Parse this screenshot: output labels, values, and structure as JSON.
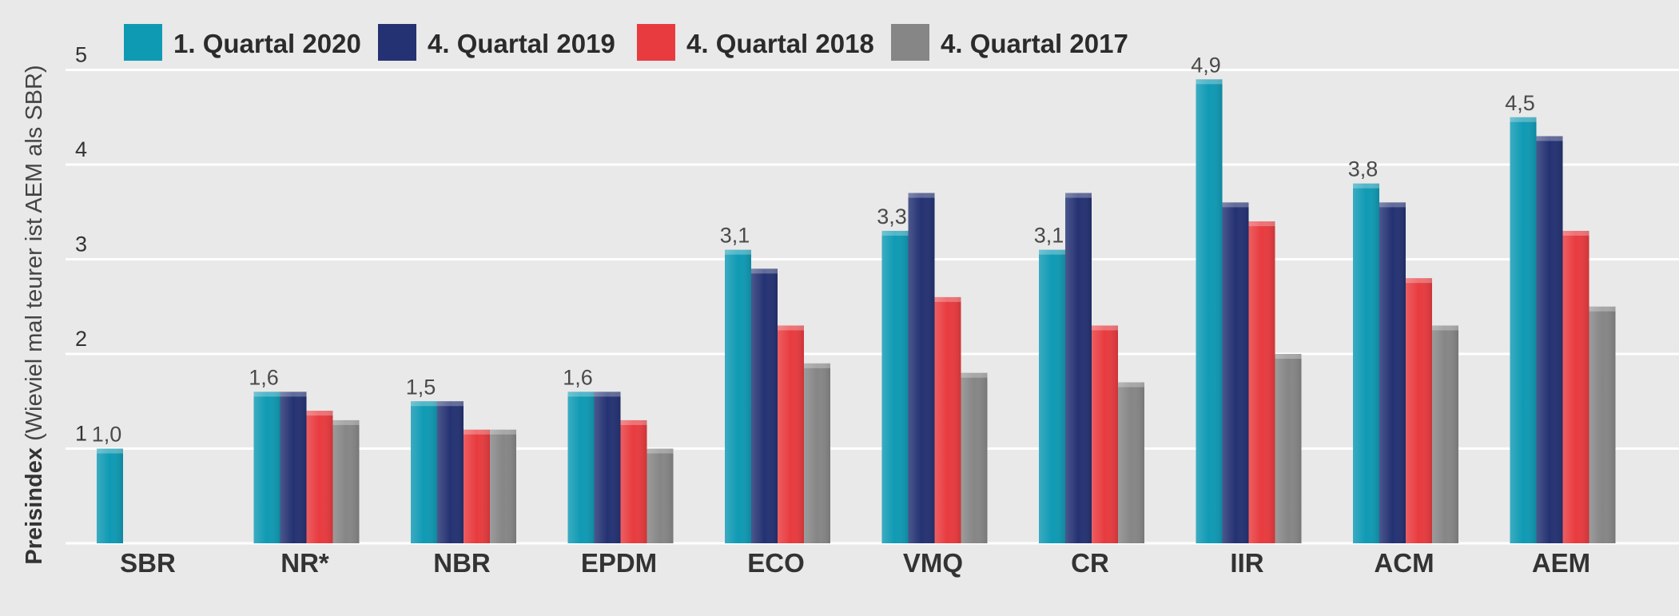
{
  "chart_data": {
    "type": "bar",
    "title": "",
    "xlabel": "",
    "ylabel_bold": "Preisindex",
    "ylabel_rest": " (Wieviel mal teurer ist AEM als SBR)",
    "ylim": [
      0,
      5
    ],
    "yticks": [
      1,
      2,
      3,
      4,
      5
    ],
    "legend_position": "top",
    "grid": true,
    "categories": [
      "SBR",
      "NR*",
      "NBR",
      "EPDM",
      "ECO",
      "VMQ",
      "CR",
      "IIR",
      "ACM",
      "AEM"
    ],
    "series": [
      {
        "name": "1. Quartal 2020",
        "color": "#0f9ab4",
        "values": [
          1.0,
          1.6,
          1.5,
          1.6,
          3.1,
          3.3,
          3.1,
          4.9,
          3.8,
          4.5
        ]
      },
      {
        "name": "4. Quartal 2019",
        "color": "#243273",
        "values": [
          null,
          1.6,
          1.5,
          1.6,
          2.9,
          3.7,
          3.7,
          3.6,
          3.6,
          4.3
        ]
      },
      {
        "name": "4. Quartal 2018",
        "color": "#e83b3f",
        "values": [
          null,
          1.4,
          1.2,
          1.3,
          2.3,
          2.6,
          2.3,
          3.4,
          2.8,
          3.3
        ]
      },
      {
        "name": "4. Quartal 2017",
        "color": "#868686",
        "values": [
          null,
          1.3,
          1.2,
          1.0,
          1.9,
          1.8,
          1.7,
          2.0,
          2.3,
          2.5
        ]
      }
    ],
    "data_labels": [
      "1,0",
      "1,6",
      "1,5",
      "1,6",
      "3,1",
      "3,3",
      "3,1",
      "4,9",
      "3,8",
      "4,5"
    ]
  }
}
